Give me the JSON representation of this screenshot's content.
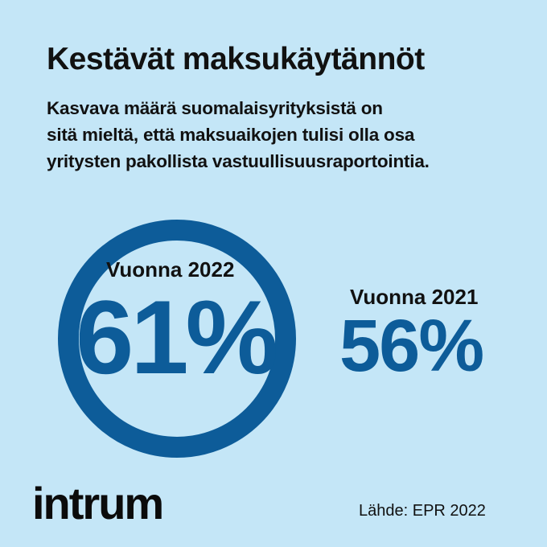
{
  "title": "Kestävät maksukäytännöt",
  "subtitle": [
    "Kasvava määrä suomalaisyrityksistä on",
    "sitä mieltä, että maksuaikojen tulisi olla osa",
    "yritysten pakollista vastuullisuusraportointia."
  ],
  "stats": {
    "year_2022_label": "Vuonna  2022",
    "value_2022": "61%",
    "year_2021_label": "Vuonna  2021",
    "value_2021": "56%"
  },
  "logo_text": "intrum",
  "source": "Lähde: EPR 2022",
  "colors": {
    "background": "#c4e6f7",
    "accent": "#0d5c99",
    "text": "#111111"
  }
}
